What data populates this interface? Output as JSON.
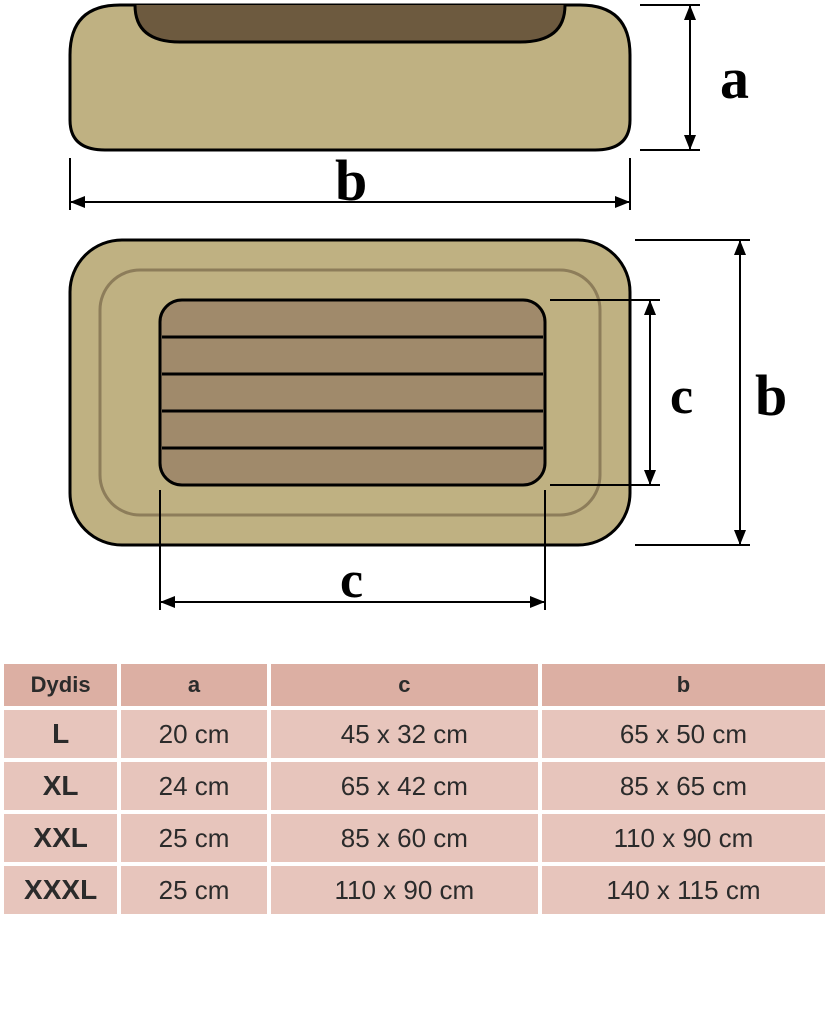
{
  "diagram": {
    "label_a": "a",
    "label_b_top": "b",
    "label_c_side": "c",
    "label_b_side": "b",
    "label_c_bottom": "c",
    "colors": {
      "bed_outer": "#bfb182",
      "bed_inner": "#6d5a3f",
      "bed_inner_light": "#a08a6b",
      "stroke": "#000000",
      "stroke_width": 3
    },
    "label_font_size": 50,
    "label_font_family": "Georgia, serif"
  },
  "table": {
    "header_bg": "#dcafa3",
    "cell_bg": "#e7c5bc",
    "text_color": "#2b2b2b",
    "columns": [
      "Dydis",
      "a",
      "c",
      "b"
    ],
    "rows": [
      [
        "L",
        "20 cm",
        "45 x 32 cm",
        "65 x 50 cm"
      ],
      [
        "XL",
        "24 cm",
        "65 x 42 cm",
        "85 x 65 cm"
      ],
      [
        "XXL",
        "25 cm",
        "85 x 60 cm",
        "110 x 90 cm"
      ],
      [
        "XXXL",
        "25 cm",
        "110 x 90 cm",
        "140 x 115 cm"
      ]
    ]
  }
}
